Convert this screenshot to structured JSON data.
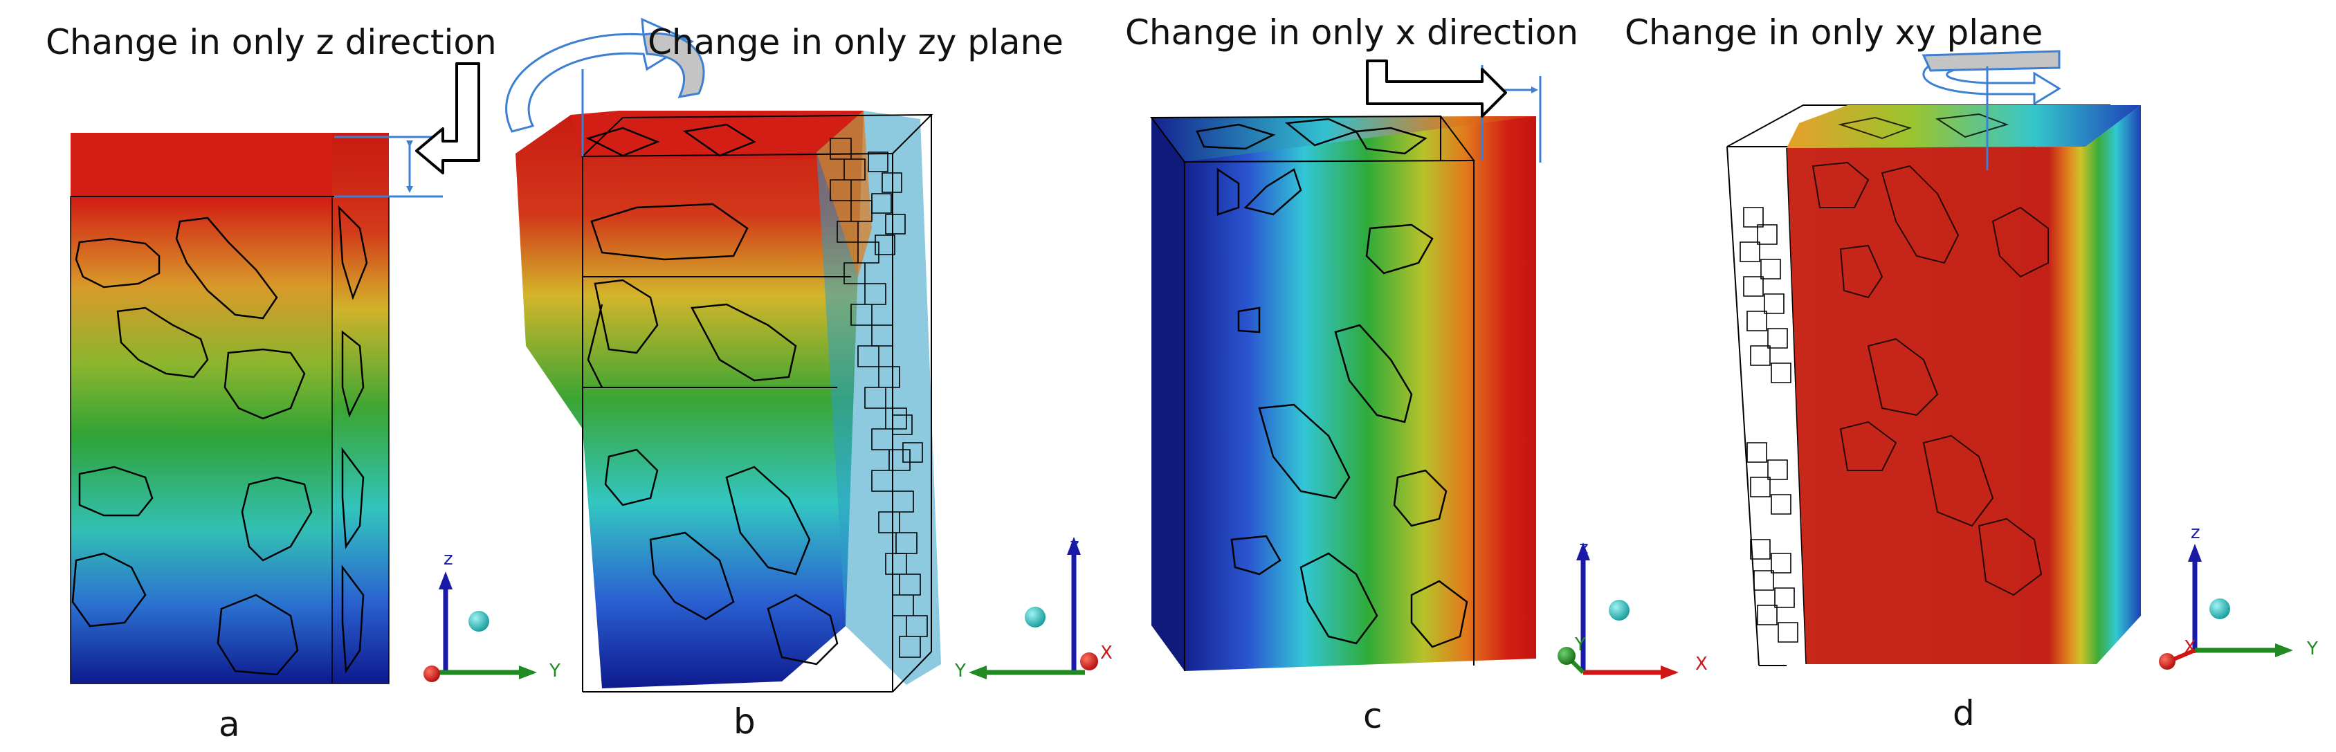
{
  "titles": {
    "a": "Change in only z direction",
    "b": "Change in only zy plane",
    "c": "Change in only x direction",
    "d": "Change in only xy plane"
  },
  "panel_labels": {
    "a": "a",
    "b": "b",
    "c": "c",
    "d": "d"
  },
  "axes_labels": {
    "z": "z",
    "y": "Y",
    "x": "X"
  },
  "colors": {
    "red": "#d21e14",
    "orange": "#e2791c",
    "yellow": "#d6c22a",
    "green": "#2fa336",
    "cyan": "#33c8d2",
    "blue": "#1d3fb6",
    "dark_blue": "#0d1a8e",
    "axis_z": "#1a1aa8",
    "axis_y": "#1f8a1f",
    "axis_x": "#d01515",
    "sphere": "#2bc0c0",
    "arrow_outline": "#3d7fd1",
    "arrow_fill": "#c4c4c4"
  }
}
